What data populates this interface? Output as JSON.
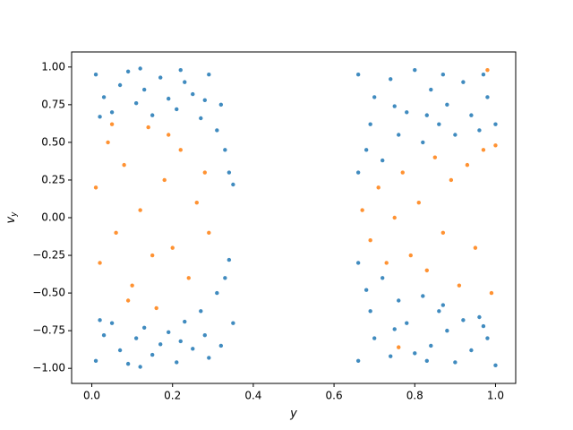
{
  "chart_data": {
    "type": "scatter",
    "xlabel": "y",
    "ylabel": "v",
    "ylabel_sub": "y",
    "xlim": [
      -0.05,
      1.05
    ],
    "ylim": [
      -1.1,
      1.1
    ],
    "xticks": [
      {
        "value": 0,
        "label": "0.0"
      },
      {
        "value": 0.2,
        "label": "0.2"
      },
      {
        "value": 0.4,
        "label": "0.4"
      },
      {
        "value": 0.6,
        "label": "0.6"
      },
      {
        "value": 0.8,
        "label": "0.8"
      },
      {
        "value": 1,
        "label": "1.0"
      }
    ],
    "yticks": [
      {
        "value": -1,
        "label": "−1.00"
      },
      {
        "value": -0.75,
        "label": "−0.75"
      },
      {
        "value": -0.5,
        "label": "−0.50"
      },
      {
        "value": -0.25,
        "label": "−0.25"
      },
      {
        "value": 0,
        "label": "0.00"
      },
      {
        "value": 0.25,
        "label": "0.25"
      },
      {
        "value": 0.5,
        "label": "0.50"
      },
      {
        "value": 0.75,
        "label": "0.75"
      },
      {
        "value": 1,
        "label": "1.00"
      }
    ],
    "series": [
      {
        "color": "#1f77b4",
        "x": [
          0.01,
          0.03,
          0.05,
          0.07,
          0.09,
          0.11,
          0.13,
          0.15,
          0.17,
          0.19,
          0.21,
          0.23,
          0.25,
          0.27,
          0.29,
          0.31,
          0.33,
          0.34,
          0.35,
          0.32,
          0.02,
          0.12,
          0.22,
          0.28,
          0.01,
          0.03,
          0.05,
          0.07,
          0.09,
          0.11,
          0.13,
          0.15,
          0.17,
          0.19,
          0.21,
          0.23,
          0.25,
          0.27,
          0.29,
          0.31,
          0.33,
          0.34,
          0.35,
          0.02,
          0.12,
          0.22,
          0.28,
          0.32,
          0.66,
          0.66,
          0.68,
          0.7,
          0.72,
          0.74,
          0.76,
          0.78,
          0.8,
          0.82,
          0.84,
          0.86,
          0.88,
          0.9,
          0.92,
          0.94,
          0.96,
          0.98,
          1.0,
          0.69,
          0.75,
          0.87,
          0.97,
          0.83,
          0.66,
          0.66,
          0.68,
          0.7,
          0.72,
          0.74,
          0.76,
          0.78,
          0.8,
          0.82,
          0.84,
          0.86,
          0.88,
          0.9,
          0.92,
          0.94,
          0.96,
          0.98,
          1.0,
          0.69,
          0.75,
          0.87,
          0.97,
          0.83
        ],
        "values": [
          0.95,
          0.8,
          0.7,
          0.88,
          0.97,
          0.76,
          0.85,
          0.68,
          0.93,
          0.79,
          0.72,
          0.9,
          0.82,
          0.66,
          0.95,
          0.58,
          0.45,
          0.3,
          0.22,
          0.75,
          0.67,
          0.99,
          0.98,
          0.78,
          -0.95,
          -0.78,
          -0.7,
          -0.88,
          -0.97,
          -0.8,
          -0.73,
          -0.91,
          -0.84,
          -0.76,
          -0.96,
          -0.69,
          -0.87,
          -0.62,
          -0.93,
          -0.5,
          -0.4,
          -0.28,
          -0.7,
          -0.68,
          -0.99,
          -0.82,
          -0.78,
          -0.85,
          0.95,
          0.3,
          0.45,
          0.8,
          0.38,
          0.92,
          0.55,
          0.7,
          0.98,
          0.5,
          0.85,
          0.62,
          0.75,
          0.55,
          0.9,
          0.68,
          0.58,
          0.8,
          0.62,
          0.62,
          0.74,
          0.95,
          0.95,
          0.68,
          -0.95,
          -0.3,
          -0.48,
          -0.8,
          -0.4,
          -0.92,
          -0.55,
          -0.7,
          -0.9,
          -0.52,
          -0.85,
          -0.62,
          -0.75,
          -0.96,
          -0.68,
          -0.88,
          -0.66,
          -0.8,
          -0.98,
          -0.62,
          -0.74,
          -0.58,
          -0.72,
          -0.95
        ]
      },
      {
        "color": "#ff7f0e",
        "x": [
          0.01,
          0.02,
          0.04,
          0.06,
          0.08,
          0.1,
          0.12,
          0.14,
          0.16,
          0.18,
          0.2,
          0.22,
          0.24,
          0.26,
          0.28,
          0.29,
          0.05,
          0.15,
          0.19,
          0.09,
          0.67,
          0.69,
          0.71,
          0.73,
          0.75,
          0.77,
          0.79,
          0.81,
          0.83,
          0.85,
          0.87,
          0.89,
          0.91,
          0.93,
          0.95,
          0.97,
          0.99,
          1.0,
          0.98,
          0.76
        ],
        "values": [
          0.2,
          -0.3,
          0.5,
          -0.1,
          0.35,
          -0.45,
          0.05,
          0.6,
          -0.6,
          0.25,
          -0.2,
          0.45,
          -0.4,
          0.1,
          0.3,
          -0.1,
          0.62,
          -0.25,
          0.55,
          -0.55,
          0.05,
          -0.15,
          0.2,
          -0.3,
          0.0,
          0.3,
          -0.25,
          0.1,
          -0.35,
          0.4,
          -0.1,
          0.25,
          -0.45,
          0.35,
          -0.2,
          0.45,
          -0.5,
          0.48,
          0.98,
          -0.86
        ]
      }
    ]
  }
}
